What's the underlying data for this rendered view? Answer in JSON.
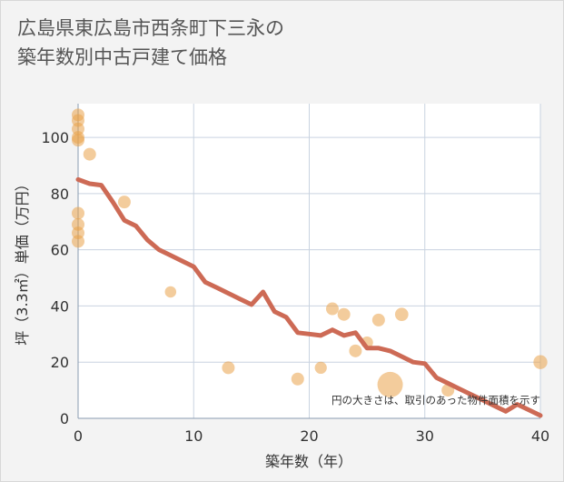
{
  "title_lines": [
    "広島県東広島市西条町下三永の",
    "築年数別中古戸建て価格"
  ],
  "chart_data": {
    "type": "scatter",
    "xlabel": "築年数（年）",
    "ylabel": "坪（3.3㎡）単価（万円）",
    "xlim": [
      0,
      40
    ],
    "ylim": [
      0,
      112
    ],
    "xticks": [
      0,
      10,
      20,
      30,
      40
    ],
    "yticks": [
      0,
      20,
      40,
      60,
      80,
      100
    ],
    "grid": true,
    "note": "円の大きさは、取引のあった物件面積を示す",
    "colors": {
      "points": "#eaa24a",
      "line": "#cd6a55",
      "grid": "#c9d3e0"
    },
    "points": [
      {
        "x": 0,
        "y": 108,
        "size": 1
      },
      {
        "x": 0,
        "y": 106,
        "size": 1
      },
      {
        "x": 0,
        "y": 103,
        "size": 1
      },
      {
        "x": 0,
        "y": 100,
        "size": 1
      },
      {
        "x": 0,
        "y": 99,
        "size": 1
      },
      {
        "x": 0,
        "y": 73,
        "size": 1
      },
      {
        "x": 0,
        "y": 69,
        "size": 1
      },
      {
        "x": 0,
        "y": 66,
        "size": 1
      },
      {
        "x": 0,
        "y": 63,
        "size": 1
      },
      {
        "x": 1,
        "y": 94,
        "size": 1
      },
      {
        "x": 4,
        "y": 77,
        "size": 1
      },
      {
        "x": 8,
        "y": 45,
        "size": 0.8
      },
      {
        "x": 13,
        "y": 18,
        "size": 1
      },
      {
        "x": 19,
        "y": 14,
        "size": 1
      },
      {
        "x": 21,
        "y": 18,
        "size": 0.9
      },
      {
        "x": 22,
        "y": 39,
        "size": 1
      },
      {
        "x": 23,
        "y": 37,
        "size": 1
      },
      {
        "x": 24,
        "y": 24,
        "size": 1
      },
      {
        "x": 25,
        "y": 27,
        "size": 0.9
      },
      {
        "x": 26,
        "y": 35,
        "size": 1
      },
      {
        "x": 27,
        "y": 12,
        "size": 4
      },
      {
        "x": 28,
        "y": 37,
        "size": 1.1
      },
      {
        "x": 32,
        "y": 10,
        "size": 1
      },
      {
        "x": 40,
        "y": 20,
        "size": 1.2
      }
    ],
    "line": [
      {
        "x": 0,
        "y": 85
      },
      {
        "x": 1,
        "y": 83.5
      },
      {
        "x": 2,
        "y": 83
      },
      {
        "x": 3,
        "y": 77
      },
      {
        "x": 4,
        "y": 70.5
      },
      {
        "x": 5,
        "y": 68.5
      },
      {
        "x": 6,
        "y": 63.5
      },
      {
        "x": 7,
        "y": 60
      },
      {
        "x": 8,
        "y": 58
      },
      {
        "x": 9,
        "y": 56
      },
      {
        "x": 10,
        "y": 54
      },
      {
        "x": 11,
        "y": 48.5
      },
      {
        "x": 12,
        "y": 46.5
      },
      {
        "x": 13,
        "y": 44.5
      },
      {
        "x": 14,
        "y": 42.5
      },
      {
        "x": 15,
        "y": 40.5
      },
      {
        "x": 16,
        "y": 45
      },
      {
        "x": 17,
        "y": 38
      },
      {
        "x": 18,
        "y": 36
      },
      {
        "x": 19,
        "y": 30.5
      },
      {
        "x": 20,
        "y": 30
      },
      {
        "x": 21,
        "y": 29.5
      },
      {
        "x": 22,
        "y": 31.5
      },
      {
        "x": 23,
        "y": 29.5
      },
      {
        "x": 24,
        "y": 30.5
      },
      {
        "x": 25,
        "y": 25
      },
      {
        "x": 26,
        "y": 25
      },
      {
        "x": 27,
        "y": 24
      },
      {
        "x": 28,
        "y": 22
      },
      {
        "x": 29,
        "y": 20
      },
      {
        "x": 30,
        "y": 19.5
      },
      {
        "x": 31,
        "y": 14.5
      },
      {
        "x": 32,
        "y": 12.5
      },
      {
        "x": 33,
        "y": 10.5
      },
      {
        "x": 34,
        "y": 8.5
      },
      {
        "x": 35,
        "y": 6.5
      },
      {
        "x": 36,
        "y": 4.5
      },
      {
        "x": 37,
        "y": 2.5
      },
      {
        "x": 38,
        "y": 5
      },
      {
        "x": 39,
        "y": 3
      },
      {
        "x": 40,
        "y": 1
      }
    ]
  }
}
